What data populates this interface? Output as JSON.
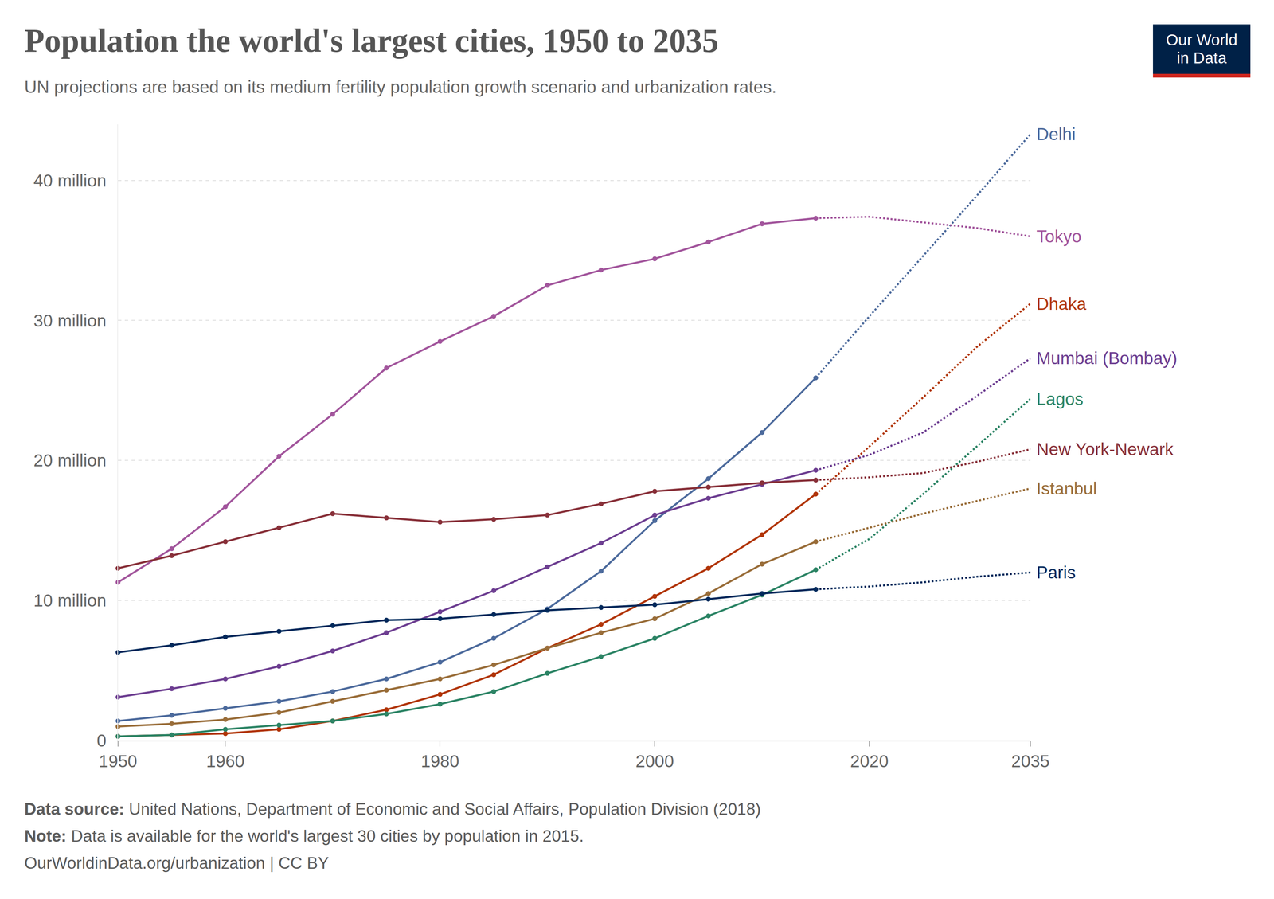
{
  "chart_data": {
    "type": "line",
    "title": "Population the world's largest cities, 1950 to 2035",
    "subtitle": "UN projections are based on its medium fertility population growth scenario and urbanization rates.",
    "source_label": "Data source:",
    "source": "United Nations, Department of Economic and Social Affairs, Population Division (2018)",
    "note_label": "Note:",
    "note": "Data is available for the world's largest 30 cities by population in 2015.",
    "footer": "OurWorldinData.org/urbanization | CC BY",
    "logo": [
      "Our World",
      "in Data"
    ],
    "x": [
      1950,
      1955,
      1960,
      1965,
      1970,
      1975,
      1980,
      1985,
      1990,
      1995,
      2000,
      2005,
      2010,
      2015,
      2020,
      2025,
      2030,
      2035
    ],
    "xlim": [
      1950,
      2035
    ],
    "xticks": [
      1950,
      1960,
      1980,
      2000,
      2020,
      2035
    ],
    "ylim": [
      0,
      44
    ],
    "yticks": [
      0,
      {
        "value": 10,
        "label": "10 million"
      },
      {
        "value": 20,
        "label": "20 million"
      },
      {
        "value": 30,
        "label": "30 million"
      },
      {
        "value": 40,
        "label": "40 million"
      }
    ],
    "grid": true,
    "series": [
      {
        "name": "Delhi",
        "color": "#4c6a9c",
        "values": [
          1.4,
          1.8,
          2.3,
          2.8,
          3.5,
          4.4,
          5.6,
          7.3,
          9.4,
          12.1,
          15.7,
          18.7,
          22.0,
          25.9,
          null,
          null,
          null,
          null
        ],
        "projection": [
          null,
          null,
          null,
          null,
          null,
          null,
          null,
          null,
          null,
          null,
          null,
          null,
          null,
          25.9,
          30.3,
          34.6,
          38.9,
          43.3
        ]
      },
      {
        "name": "Tokyo",
        "color": "#a2559c",
        "values": [
          11.3,
          13.7,
          16.7,
          20.3,
          23.3,
          26.6,
          28.5,
          30.3,
          32.5,
          33.6,
          34.4,
          35.6,
          36.9,
          37.3,
          null,
          null,
          null,
          null
        ],
        "projection": [
          null,
          null,
          null,
          null,
          null,
          null,
          null,
          null,
          null,
          null,
          null,
          null,
          null,
          37.3,
          37.4,
          37.0,
          36.6,
          36.0
        ]
      },
      {
        "name": "Dhaka",
        "color": "#b13507",
        "values": [
          0.3,
          0.4,
          0.5,
          0.8,
          1.4,
          2.2,
          3.3,
          4.7,
          6.6,
          8.3,
          10.3,
          12.3,
          14.7,
          17.6,
          null,
          null,
          null,
          null
        ],
        "projection": [
          null,
          null,
          null,
          null,
          null,
          null,
          null,
          null,
          null,
          null,
          null,
          null,
          null,
          17.6,
          21.0,
          24.5,
          28.1,
          31.2
        ]
      },
      {
        "name": "Mumbai (Bombay)",
        "color": "#6d3e91",
        "values": [
          3.1,
          3.7,
          4.4,
          5.3,
          6.4,
          7.7,
          9.2,
          10.7,
          12.4,
          14.1,
          16.1,
          17.3,
          18.3,
          19.3,
          null,
          null,
          null,
          null
        ],
        "projection": [
          null,
          null,
          null,
          null,
          null,
          null,
          null,
          null,
          null,
          null,
          null,
          null,
          null,
          19.3,
          20.4,
          22.0,
          24.6,
          27.3
        ]
      },
      {
        "name": "Lagos",
        "color": "#2c8465",
        "values": [
          0.3,
          0.4,
          0.8,
          1.1,
          1.4,
          1.9,
          2.6,
          3.5,
          4.8,
          6.0,
          7.3,
          8.9,
          10.4,
          12.2,
          null,
          null,
          null,
          null
        ],
        "projection": [
          null,
          null,
          null,
          null,
          null,
          null,
          null,
          null,
          null,
          null,
          null,
          null,
          null,
          12.2,
          14.4,
          17.6,
          21.0,
          24.4
        ]
      },
      {
        "name": "New York-Newark",
        "color": "#883039",
        "values": [
          12.3,
          13.2,
          14.2,
          15.2,
          16.2,
          15.9,
          15.6,
          15.8,
          16.1,
          16.9,
          17.8,
          18.1,
          18.4,
          18.6,
          null,
          null,
          null,
          null
        ],
        "projection": [
          null,
          null,
          null,
          null,
          null,
          null,
          null,
          null,
          null,
          null,
          null,
          null,
          null,
          18.6,
          18.8,
          19.1,
          19.9,
          20.8
        ]
      },
      {
        "name": "Istanbul",
        "color": "#996d39",
        "values": [
          1.0,
          1.2,
          1.5,
          2.0,
          2.8,
          3.6,
          4.4,
          5.4,
          6.6,
          7.7,
          8.7,
          10.5,
          12.6,
          14.2,
          null,
          null,
          null,
          null
        ],
        "projection": [
          null,
          null,
          null,
          null,
          null,
          null,
          null,
          null,
          null,
          null,
          null,
          null,
          null,
          14.2,
          15.2,
          16.2,
          17.1,
          18.0
        ]
      },
      {
        "name": "Paris",
        "color": "#00295b",
        "values": [
          6.3,
          6.8,
          7.4,
          7.8,
          8.2,
          8.6,
          8.7,
          9.0,
          9.3,
          9.5,
          9.7,
          10.1,
          10.5,
          10.8,
          null,
          null,
          null,
          null
        ],
        "projection": [
          null,
          null,
          null,
          null,
          null,
          null,
          null,
          null,
          null,
          null,
          null,
          null,
          null,
          10.8,
          11.0,
          11.3,
          11.7,
          12.0
        ]
      }
    ]
  }
}
